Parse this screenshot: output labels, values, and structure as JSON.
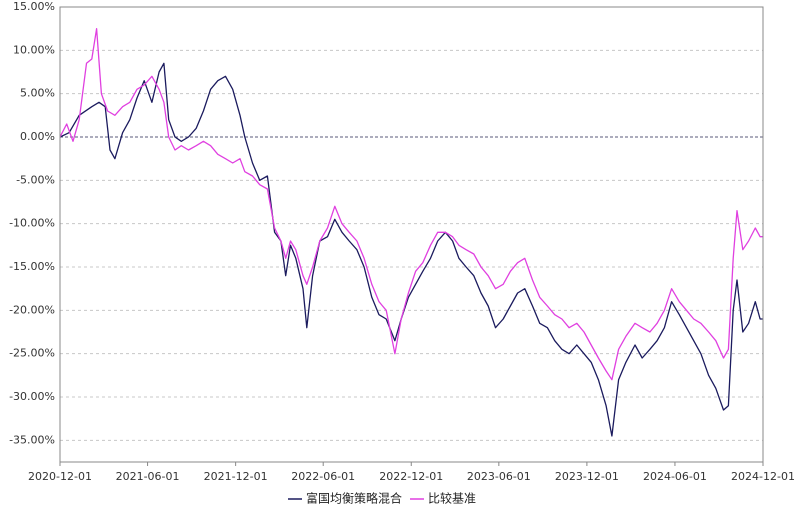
{
  "chart_data": {
    "type": "line",
    "title": "",
    "xlabel": "",
    "ylabel": "",
    "ylim": [
      -37.5,
      15
    ],
    "y_ticks": [
      15,
      10,
      5,
      0,
      -5,
      -10,
      -15,
      -20,
      -25,
      -30,
      -35
    ],
    "y_tick_labels": [
      "15.00%",
      "10.00%",
      "5.00%",
      "0.00%",
      "-5.00%",
      "-10.00%",
      "-15.00%",
      "-20.00%",
      "-25.00%",
      "-30.00%",
      "-35.00%"
    ],
    "x_range": [
      "2020-12-01",
      "2024-12-01"
    ],
    "x_ticks": [
      "2020-12-01",
      "2021-06-01",
      "2021-12-01",
      "2022-06-01",
      "2022-12-01",
      "2023-06-01",
      "2023-12-01",
      "2024-06-01",
      "2024-12-01"
    ],
    "grid": true,
    "legend_position": "bottom",
    "series": [
      {
        "name": "富国均衡策略混合",
        "color": "#1b1b5e",
        "points": [
          [
            "2020-12-01",
            0.0
          ],
          [
            "2020-12-20",
            0.5
          ],
          [
            "2021-01-10",
            2.5
          ],
          [
            "2021-02-05",
            3.5
          ],
          [
            "2021-02-20",
            4.0
          ],
          [
            "2021-03-05",
            3.5
          ],
          [
            "2021-03-15",
            -1.5
          ],
          [
            "2021-03-25",
            -2.5
          ],
          [
            "2021-04-10",
            0.5
          ],
          [
            "2021-04-25",
            2.0
          ],
          [
            "2021-05-10",
            4.5
          ],
          [
            "2021-05-25",
            6.5
          ],
          [
            "2021-06-10",
            4.0
          ],
          [
            "2021-06-25",
            7.5
          ],
          [
            "2021-07-05",
            8.5
          ],
          [
            "2021-07-15",
            2.0
          ],
          [
            "2021-07-28",
            0.0
          ],
          [
            "2021-08-10",
            -0.5
          ],
          [
            "2021-08-25",
            0.0
          ],
          [
            "2021-09-10",
            1.0
          ],
          [
            "2021-09-25",
            3.0
          ],
          [
            "2021-10-10",
            5.5
          ],
          [
            "2021-10-25",
            6.5
          ],
          [
            "2021-11-10",
            7.0
          ],
          [
            "2021-11-25",
            5.5
          ],
          [
            "2021-12-10",
            2.5
          ],
          [
            "2021-12-20",
            0.0
          ],
          [
            "2022-01-05",
            -3.0
          ],
          [
            "2022-01-20",
            -5.0
          ],
          [
            "2022-02-05",
            -4.5
          ],
          [
            "2022-02-20",
            -11.0
          ],
          [
            "2022-03-05",
            -12.0
          ],
          [
            "2022-03-15",
            -16.0
          ],
          [
            "2022-03-25",
            -12.5
          ],
          [
            "2022-04-05",
            -14.0
          ],
          [
            "2022-04-20",
            -17.5
          ],
          [
            "2022-04-28",
            -22.0
          ],
          [
            "2022-05-10",
            -16.0
          ],
          [
            "2022-05-25",
            -12.0
          ],
          [
            "2022-06-10",
            -11.5
          ],
          [
            "2022-06-25",
            -9.5
          ],
          [
            "2022-07-10",
            -11.0
          ],
          [
            "2022-07-25",
            -12.0
          ],
          [
            "2022-08-10",
            -13.0
          ],
          [
            "2022-08-25",
            -15.0
          ],
          [
            "2022-09-10",
            -18.5
          ],
          [
            "2022-09-25",
            -20.5
          ],
          [
            "2022-10-10",
            -21.0
          ],
          [
            "2022-10-28",
            -23.5
          ],
          [
            "2022-11-10",
            -21.0
          ],
          [
            "2022-11-25",
            -18.5
          ],
          [
            "2022-12-10",
            -17.0
          ],
          [
            "2022-12-25",
            -15.5
          ],
          [
            "2023-01-10",
            -14.0
          ],
          [
            "2023-01-25",
            -12.0
          ],
          [
            "2023-02-10",
            -11.0
          ],
          [
            "2023-02-25",
            -12.0
          ],
          [
            "2023-03-10",
            -14.0
          ],
          [
            "2023-03-25",
            -15.0
          ],
          [
            "2023-04-10",
            -16.0
          ],
          [
            "2023-04-25",
            -18.0
          ],
          [
            "2023-05-10",
            -19.5
          ],
          [
            "2023-05-25",
            -22.0
          ],
          [
            "2023-06-10",
            -21.0
          ],
          [
            "2023-06-25",
            -19.5
          ],
          [
            "2023-07-10",
            -18.0
          ],
          [
            "2023-07-25",
            -17.5
          ],
          [
            "2023-08-10",
            -19.5
          ],
          [
            "2023-08-25",
            -21.5
          ],
          [
            "2023-09-10",
            -22.0
          ],
          [
            "2023-09-25",
            -23.5
          ],
          [
            "2023-10-10",
            -24.5
          ],
          [
            "2023-10-25",
            -25.0
          ],
          [
            "2023-11-10",
            -24.0
          ],
          [
            "2023-11-25",
            -25.0
          ],
          [
            "2023-12-10",
            -26.0
          ],
          [
            "2023-12-25",
            -28.0
          ],
          [
            "2024-01-10",
            -31.0
          ],
          [
            "2024-01-22",
            -34.5
          ],
          [
            "2024-02-05",
            -28.0
          ],
          [
            "2024-02-20",
            -26.0
          ],
          [
            "2024-03-10",
            -24.0
          ],
          [
            "2024-03-25",
            -25.5
          ],
          [
            "2024-04-10",
            -24.5
          ],
          [
            "2024-04-25",
            -23.5
          ],
          [
            "2024-05-10",
            -22.0
          ],
          [
            "2024-05-25",
            -19.0
          ],
          [
            "2024-06-10",
            -20.5
          ],
          [
            "2024-06-25",
            -22.0
          ],
          [
            "2024-07-10",
            -23.5
          ],
          [
            "2024-07-25",
            -25.0
          ],
          [
            "2024-08-10",
            -27.5
          ],
          [
            "2024-08-25",
            -29.0
          ],
          [
            "2024-09-10",
            -31.5
          ],
          [
            "2024-09-20",
            -31.0
          ],
          [
            "2024-09-30",
            -20.0
          ],
          [
            "2024-10-08",
            -16.5
          ],
          [
            "2024-10-20",
            -22.5
          ],
          [
            "2024-11-01",
            -21.5
          ],
          [
            "2024-11-15",
            -19.0
          ],
          [
            "2024-11-25",
            -21.0
          ],
          [
            "2024-12-01",
            -21.0
          ]
        ]
      },
      {
        "name": "比较基准",
        "color": "#e040e0",
        "points": [
          [
            "2020-12-01",
            0.0
          ],
          [
            "2020-12-15",
            1.5
          ],
          [
            "2020-12-28",
            -0.5
          ],
          [
            "2021-01-10",
            2.0
          ],
          [
            "2021-01-25",
            8.5
          ],
          [
            "2021-02-05",
            9.0
          ],
          [
            "2021-02-15",
            12.5
          ],
          [
            "2021-02-25",
            5.0
          ],
          [
            "2021-03-10",
            3.0
          ],
          [
            "2021-03-25",
            2.5
          ],
          [
            "2021-04-10",
            3.5
          ],
          [
            "2021-04-25",
            4.0
          ],
          [
            "2021-05-10",
            5.5
          ],
          [
            "2021-05-25",
            6.0
          ],
          [
            "2021-06-10",
            7.0
          ],
          [
            "2021-06-25",
            5.5
          ],
          [
            "2021-07-05",
            4.0
          ],
          [
            "2021-07-15",
            0.0
          ],
          [
            "2021-07-28",
            -1.5
          ],
          [
            "2021-08-10",
            -1.0
          ],
          [
            "2021-08-25",
            -1.5
          ],
          [
            "2021-09-10",
            -1.0
          ],
          [
            "2021-09-25",
            -0.5
          ],
          [
            "2021-10-10",
            -1.0
          ],
          [
            "2021-10-25",
            -2.0
          ],
          [
            "2021-11-10",
            -2.5
          ],
          [
            "2021-11-25",
            -3.0
          ],
          [
            "2021-12-10",
            -2.5
          ],
          [
            "2021-12-20",
            -4.0
          ],
          [
            "2022-01-05",
            -4.5
          ],
          [
            "2022-01-20",
            -5.5
          ],
          [
            "2022-02-05",
            -6.0
          ],
          [
            "2022-02-20",
            -10.5
          ],
          [
            "2022-03-05",
            -12.0
          ],
          [
            "2022-03-15",
            -14.0
          ],
          [
            "2022-03-25",
            -12.0
          ],
          [
            "2022-04-05",
            -13.0
          ],
          [
            "2022-04-20",
            -16.0
          ],
          [
            "2022-04-28",
            -17.0
          ],
          [
            "2022-05-10",
            -15.0
          ],
          [
            "2022-05-25",
            -12.0
          ],
          [
            "2022-06-10",
            -10.5
          ],
          [
            "2022-06-25",
            -8.0
          ],
          [
            "2022-07-10",
            -10.0
          ],
          [
            "2022-07-25",
            -11.0
          ],
          [
            "2022-08-10",
            -12.0
          ],
          [
            "2022-08-25",
            -14.0
          ],
          [
            "2022-09-10",
            -17.0
          ],
          [
            "2022-09-25",
            -19.0
          ],
          [
            "2022-10-10",
            -20.0
          ],
          [
            "2022-10-28",
            -25.0
          ],
          [
            "2022-11-10",
            -21.0
          ],
          [
            "2022-11-25",
            -18.0
          ],
          [
            "2022-12-10",
            -15.5
          ],
          [
            "2022-12-25",
            -14.5
          ],
          [
            "2023-01-10",
            -12.5
          ],
          [
            "2023-01-25",
            -11.0
          ],
          [
            "2023-02-10",
            -11.0
          ],
          [
            "2023-02-25",
            -11.5
          ],
          [
            "2023-03-10",
            -12.5
          ],
          [
            "2023-03-25",
            -13.0
          ],
          [
            "2023-04-10",
            -13.5
          ],
          [
            "2023-04-25",
            -15.0
          ],
          [
            "2023-05-10",
            -16.0
          ],
          [
            "2023-05-25",
            -17.5
          ],
          [
            "2023-06-10",
            -17.0
          ],
          [
            "2023-06-25",
            -15.5
          ],
          [
            "2023-07-10",
            -14.5
          ],
          [
            "2023-07-25",
            -14.0
          ],
          [
            "2023-08-10",
            -16.5
          ],
          [
            "2023-08-25",
            -18.5
          ],
          [
            "2023-09-10",
            -19.5
          ],
          [
            "2023-09-25",
            -20.5
          ],
          [
            "2023-10-10",
            -21.0
          ],
          [
            "2023-10-25",
            -22.0
          ],
          [
            "2023-11-10",
            -21.5
          ],
          [
            "2023-11-25",
            -22.5
          ],
          [
            "2023-12-10",
            -24.0
          ],
          [
            "2023-12-25",
            -25.5
          ],
          [
            "2024-01-10",
            -27.0
          ],
          [
            "2024-01-22",
            -28.0
          ],
          [
            "2024-02-05",
            -24.5
          ],
          [
            "2024-02-20",
            -23.0
          ],
          [
            "2024-03-10",
            -21.5
          ],
          [
            "2024-03-25",
            -22.0
          ],
          [
            "2024-04-10",
            -22.5
          ],
          [
            "2024-04-25",
            -21.5
          ],
          [
            "2024-05-10",
            -20.0
          ],
          [
            "2024-05-25",
            -17.5
          ],
          [
            "2024-06-10",
            -19.0
          ],
          [
            "2024-06-25",
            -20.0
          ],
          [
            "2024-07-10",
            -21.0
          ],
          [
            "2024-07-25",
            -21.5
          ],
          [
            "2024-08-10",
            -22.5
          ],
          [
            "2024-08-25",
            -23.5
          ],
          [
            "2024-09-10",
            -25.5
          ],
          [
            "2024-09-20",
            -24.5
          ],
          [
            "2024-09-30",
            -14.0
          ],
          [
            "2024-10-08",
            -8.5
          ],
          [
            "2024-10-20",
            -13.0
          ],
          [
            "2024-11-01",
            -12.0
          ],
          [
            "2024-11-15",
            -10.5
          ],
          [
            "2024-11-25",
            -11.5
          ],
          [
            "2024-12-01",
            -11.5
          ]
        ]
      }
    ]
  }
}
